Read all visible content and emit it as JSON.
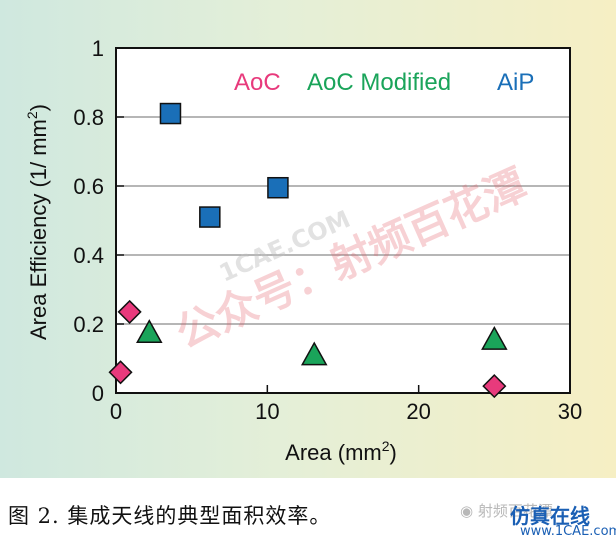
{
  "chart_data": {
    "type": "scatter",
    "title": "",
    "xlabel": "Area (mm",
    "xlabel_sup": "2",
    "xlabel_end": ")",
    "ylabel": "Area Efficiency (1/ mm",
    "ylabel_sup": "2",
    "ylabel_end": ")",
    "xlim": [
      0,
      30
    ],
    "ylim": [
      0,
      1
    ],
    "x_ticks": [
      0,
      10,
      20,
      30
    ],
    "x_tick_labels": [
      "0",
      "10",
      "20",
      "30"
    ],
    "y_ticks": [
      0,
      0.2,
      0.4,
      0.6,
      0.8,
      1
    ],
    "y_tick_labels": [
      "0",
      "0.2",
      "0.4",
      "0.6",
      "0.8",
      "1"
    ],
    "grid": "horizontal",
    "legend_position": "top",
    "series": [
      {
        "name": "AoC",
        "marker": "diamond",
        "color": "#e83a7c",
        "points": [
          {
            "x": 0.3,
            "y": 0.06
          },
          {
            "x": 0.9,
            "y": 0.235
          },
          {
            "x": 25.0,
            "y": 0.02
          }
        ]
      },
      {
        "name": "AoC Modified",
        "marker": "triangle",
        "color": "#1aa45a",
        "points": [
          {
            "x": 2.2,
            "y": 0.175
          },
          {
            "x": 13.1,
            "y": 0.11
          },
          {
            "x": 25.0,
            "y": 0.155
          }
        ]
      },
      {
        "name": "AiP",
        "marker": "square",
        "color": "#1a6fb8",
        "points": [
          {
            "x": 3.6,
            "y": 0.81
          },
          {
            "x": 6.2,
            "y": 0.51
          },
          {
            "x": 10.7,
            "y": 0.595
          }
        ]
      }
    ]
  },
  "caption": "图 2. 集成天线的典型面积效率。",
  "watermark": "公众号：射频百花潭",
  "watermark_url": "1CAE.COM",
  "wechat_label": "射频百花潭",
  "site_name": "仿真在线",
  "site_url": "www.1CAE.com"
}
